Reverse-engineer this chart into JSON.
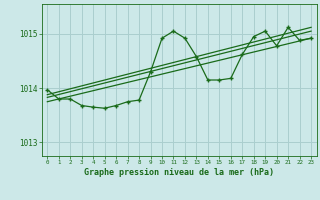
{
  "background_color": "#cce8e8",
  "grid_color": "#aacece",
  "line_color": "#1a6b1a",
  "marker_color": "#1a6b1a",
  "xlabel": "Graphe pression niveau de la mer (hPa)",
  "ylim": [
    1012.75,
    1015.55
  ],
  "xlim": [
    -0.5,
    23.5
  ],
  "yticks": [
    1013,
    1014,
    1015
  ],
  "xticks": [
    0,
    1,
    2,
    3,
    4,
    5,
    6,
    7,
    8,
    9,
    10,
    11,
    12,
    13,
    14,
    15,
    16,
    17,
    18,
    19,
    20,
    21,
    22,
    23
  ],
  "series1_x": [
    0,
    1,
    2,
    3,
    4,
    5,
    6,
    7,
    8,
    9,
    10,
    11,
    12,
    13,
    14,
    15,
    16,
    17,
    18,
    19,
    20,
    21,
    22,
    23
  ],
  "series1_y": [
    1013.97,
    1013.8,
    1013.8,
    1013.68,
    1013.65,
    1013.63,
    1013.68,
    1013.75,
    1013.78,
    1014.3,
    1014.92,
    1015.05,
    1014.92,
    1014.58,
    1014.15,
    1014.15,
    1014.18,
    1014.62,
    1014.95,
    1015.05,
    1014.78,
    1015.12,
    1014.88,
    1014.92
  ],
  "trend1_x": [
    0,
    23
  ],
  "trend1_y": [
    1013.75,
    1014.92
  ],
  "trend2_x": [
    0,
    23
  ],
  "trend2_y": [
    1013.83,
    1015.05
  ],
  "trend3_x": [
    0,
    23
  ],
  "trend3_y": [
    1013.88,
    1015.12
  ]
}
